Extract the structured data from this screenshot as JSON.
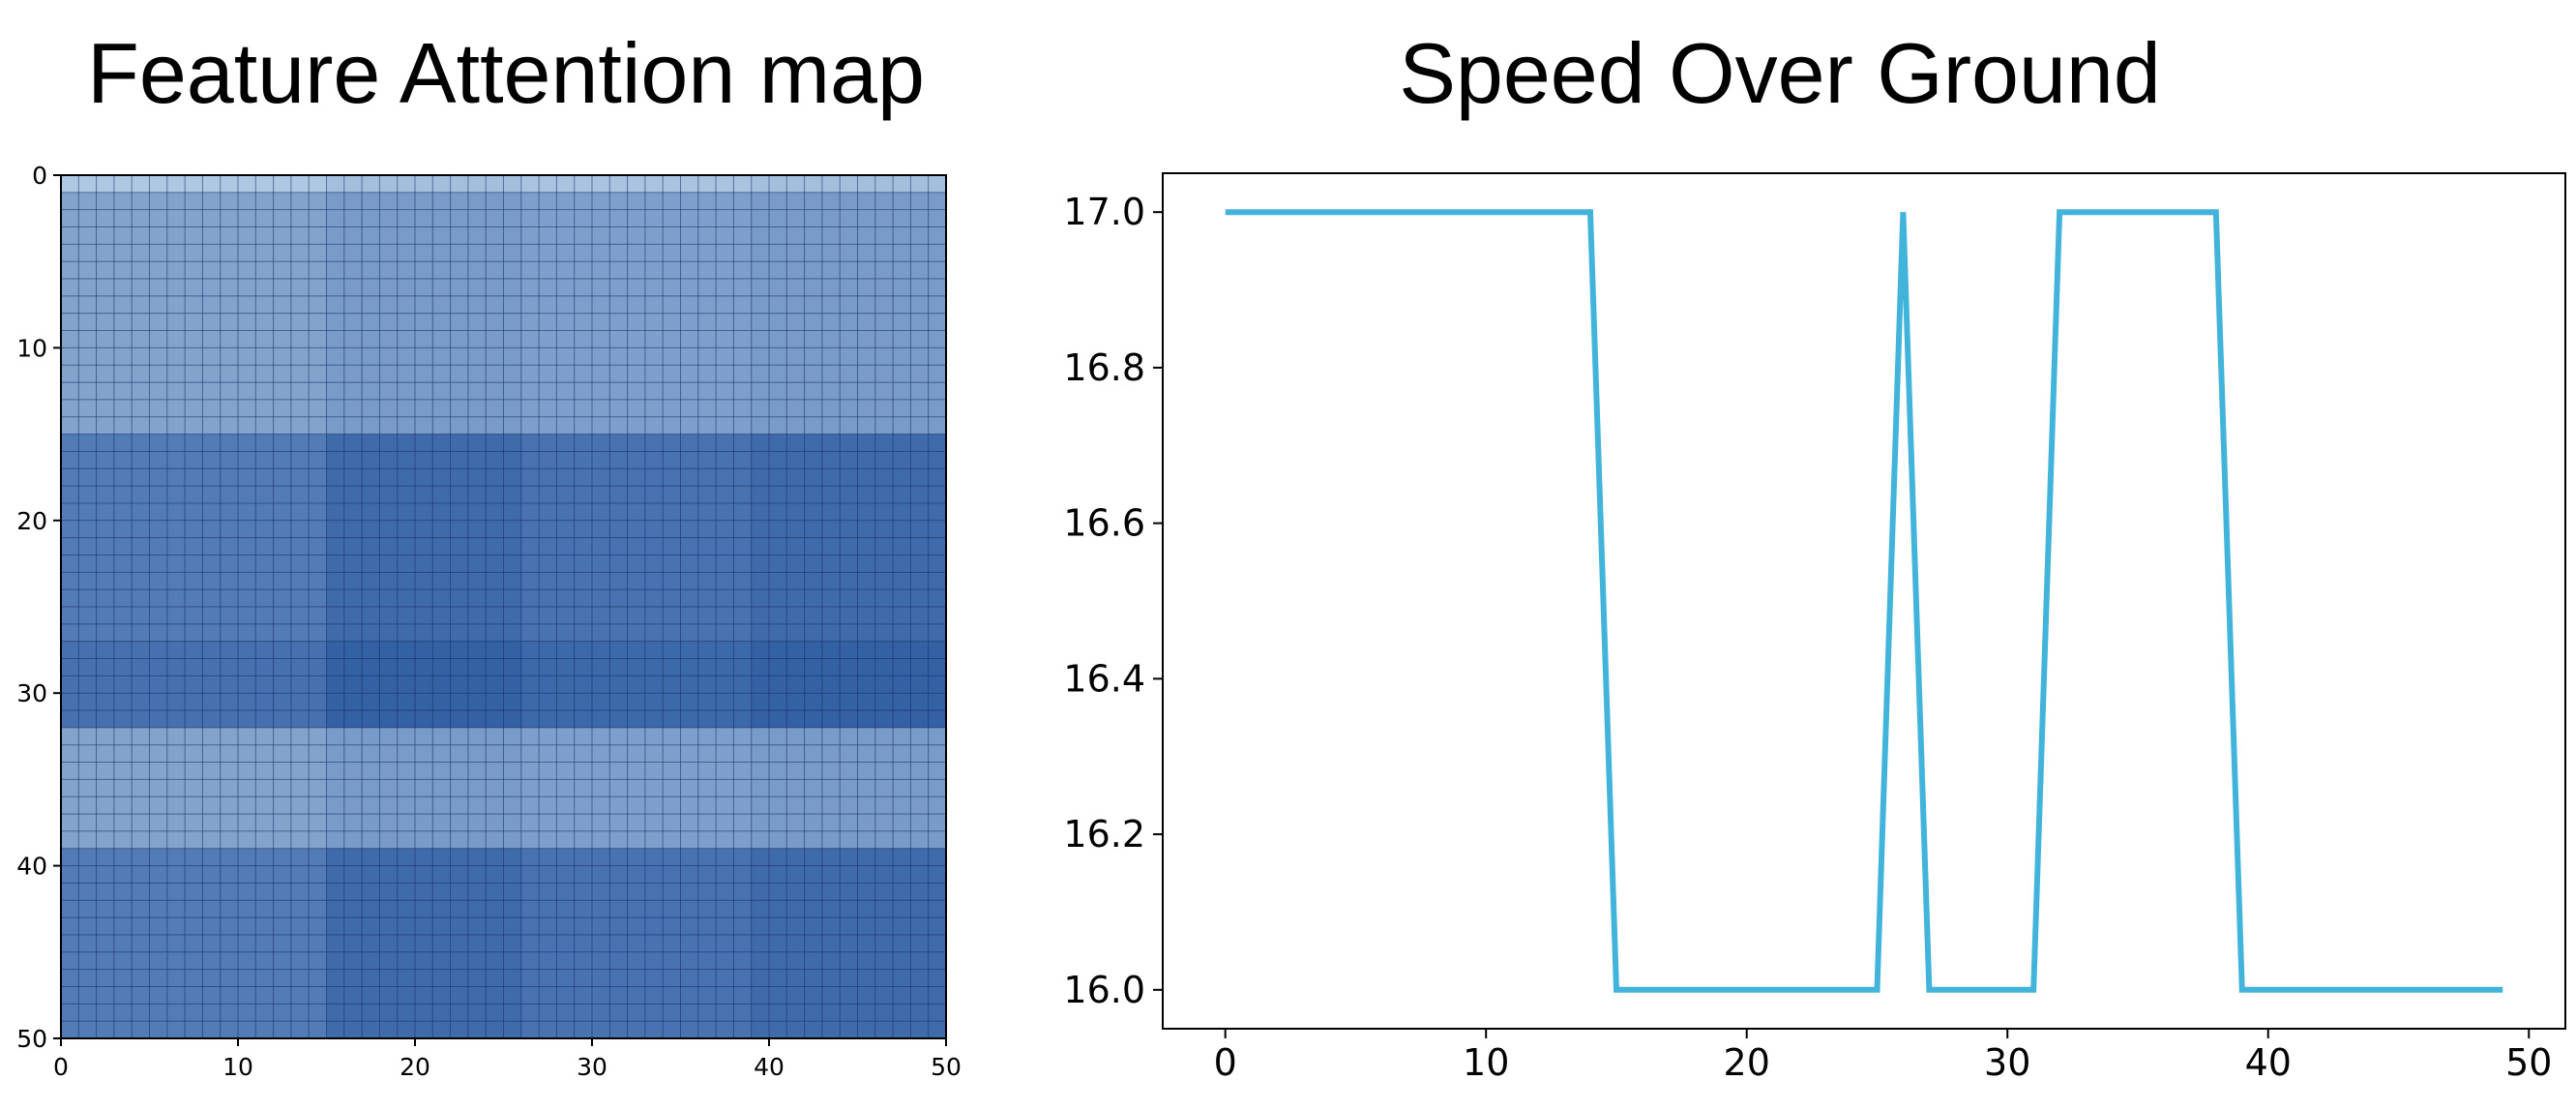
{
  "chart_data": [
    {
      "type": "heatmap",
      "title": "Feature Attention map",
      "xlabel": "",
      "ylabel": "",
      "xlim": [
        0,
        50
      ],
      "ylim": [
        50,
        0
      ],
      "xticks": [
        0,
        10,
        20,
        30,
        40,
        50
      ],
      "yticks": [
        0,
        10,
        20,
        30,
        40,
        50
      ],
      "grid": true,
      "colormap": "Blues",
      "row_weights": [
        0.15,
        0.42,
        0.42,
        0.42,
        0.42,
        0.42,
        0.42,
        0.42,
        0.42,
        0.42,
        0.42,
        0.42,
        0.42,
        0.42,
        0.42,
        0.72,
        0.72,
        0.72,
        0.72,
        0.72,
        0.72,
        0.72,
        0.72,
        0.72,
        0.72,
        0.72,
        0.72,
        0.8,
        0.8,
        0.8,
        0.8,
        0.8,
        0.42,
        0.42,
        0.42,
        0.42,
        0.42,
        0.42,
        0.42,
        0.72,
        0.72,
        0.72,
        0.72,
        0.72,
        0.72,
        0.72,
        0.72,
        0.72,
        0.72,
        0.72
      ],
      "col_weights": [
        0.0,
        0.0,
        0.0,
        0.0,
        0.0,
        0.0,
        0.0,
        0.0,
        0.0,
        0.0,
        0.0,
        0.0,
        0.0,
        0.0,
        0.0,
        0.12,
        0.12,
        0.12,
        0.12,
        0.12,
        0.12,
        0.12,
        0.12,
        0.12,
        0.12,
        0.12,
        0.06,
        0.06,
        0.06,
        0.06,
        0.06,
        0.06,
        0.06,
        0.06,
        0.06,
        0.06,
        0.06,
        0.06,
        0.06,
        0.12,
        0.12,
        0.12,
        0.12,
        0.12,
        0.12,
        0.12,
        0.12,
        0.12,
        0.12,
        0.12
      ]
    },
    {
      "type": "line",
      "title": "Speed Over Ground",
      "xlabel": "",
      "ylabel": "",
      "xlim": [
        -2.4,
        51.4
      ],
      "ylim": [
        15.95,
        17.05
      ],
      "xticks": [
        0,
        10,
        20,
        30,
        40,
        50
      ],
      "yticks": [
        16.0,
        16.2,
        16.4,
        16.6,
        16.8,
        17.0
      ],
      "grid": false,
      "color": "#42b4dc",
      "series": [
        {
          "x": [
            0,
            1,
            2,
            3,
            4,
            5,
            6,
            7,
            8,
            9,
            10,
            11,
            12,
            13,
            14,
            15,
            16,
            17,
            18,
            19,
            20,
            21,
            22,
            23,
            24,
            25,
            26,
            27,
            28,
            29,
            30,
            31,
            32,
            33,
            34,
            35,
            36,
            37,
            38,
            39,
            40,
            41,
            42,
            43,
            44,
            45,
            46,
            47,
            48,
            49
          ],
          "values": [
            17,
            17,
            17,
            17,
            17,
            17,
            17,
            17,
            17,
            17,
            17,
            17,
            17,
            17,
            17,
            16,
            16,
            16,
            16,
            16,
            16,
            16,
            16,
            16,
            16,
            16,
            17,
            16,
            16,
            16,
            16,
            16,
            17,
            17,
            17,
            17,
            17,
            17,
            17,
            16,
            16,
            16,
            16,
            16,
            16,
            16,
            16,
            16,
            16,
            16
          ]
        }
      ]
    }
  ],
  "labels": {
    "heat_xticks": [
      "0",
      "10",
      "20",
      "30",
      "40",
      "50"
    ],
    "heat_yticks": [
      "0",
      "10",
      "20",
      "30",
      "40",
      "50"
    ],
    "line_xticks": [
      "0",
      "10",
      "20",
      "30",
      "40",
      "50"
    ],
    "line_yticks": [
      "16.0",
      "16.2",
      "16.4",
      "16.6",
      "16.8",
      "17.0"
    ]
  }
}
